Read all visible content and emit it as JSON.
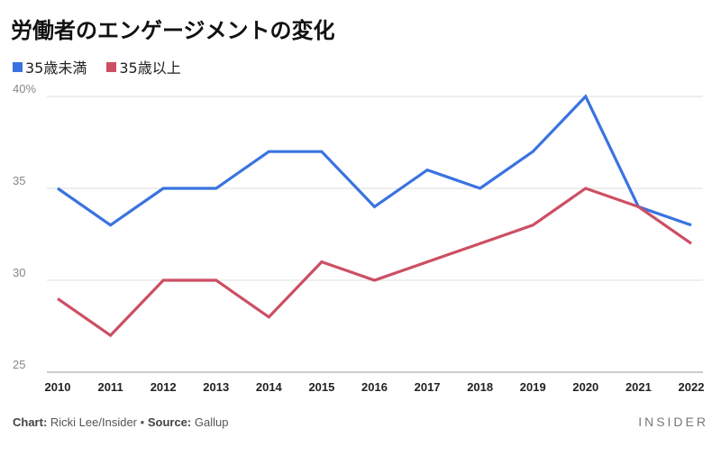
{
  "chart_data": {
    "type": "line",
    "title": "労働者のエンゲージメントの変化",
    "x": [
      "2010",
      "2011",
      "2012",
      "2013",
      "2014",
      "2015",
      "2016",
      "2017",
      "2018",
      "2019",
      "2020",
      "2021",
      "2022"
    ],
    "series": [
      {
        "name": "35歳未満",
        "color": "#3a73e0",
        "values": [
          35,
          33,
          35,
          35,
          37,
          37,
          34,
          36,
          35,
          37,
          40,
          34,
          33
        ]
      },
      {
        "name": "35歳以上",
        "color": "#cc4f63",
        "values": [
          29,
          27,
          30,
          30,
          28,
          31,
          30,
          31,
          32,
          33,
          35,
          34,
          32
        ]
      }
    ],
    "ylim": [
      25,
      40
    ],
    "yticks": [
      {
        "value": 40,
        "label": "40%"
      },
      {
        "value": 35,
        "label": "35"
      },
      {
        "value": 30,
        "label": "30"
      },
      {
        "value": 25,
        "label": "25"
      }
    ],
    "grid": true,
    "legend": "top-left"
  },
  "footer": {
    "chart_label": "Chart:",
    "chart_credit": "Ricki Lee/Insider",
    "separator": "•",
    "source_label": "Source:",
    "source_credit": "Gallup",
    "brand": "INSIDER"
  }
}
